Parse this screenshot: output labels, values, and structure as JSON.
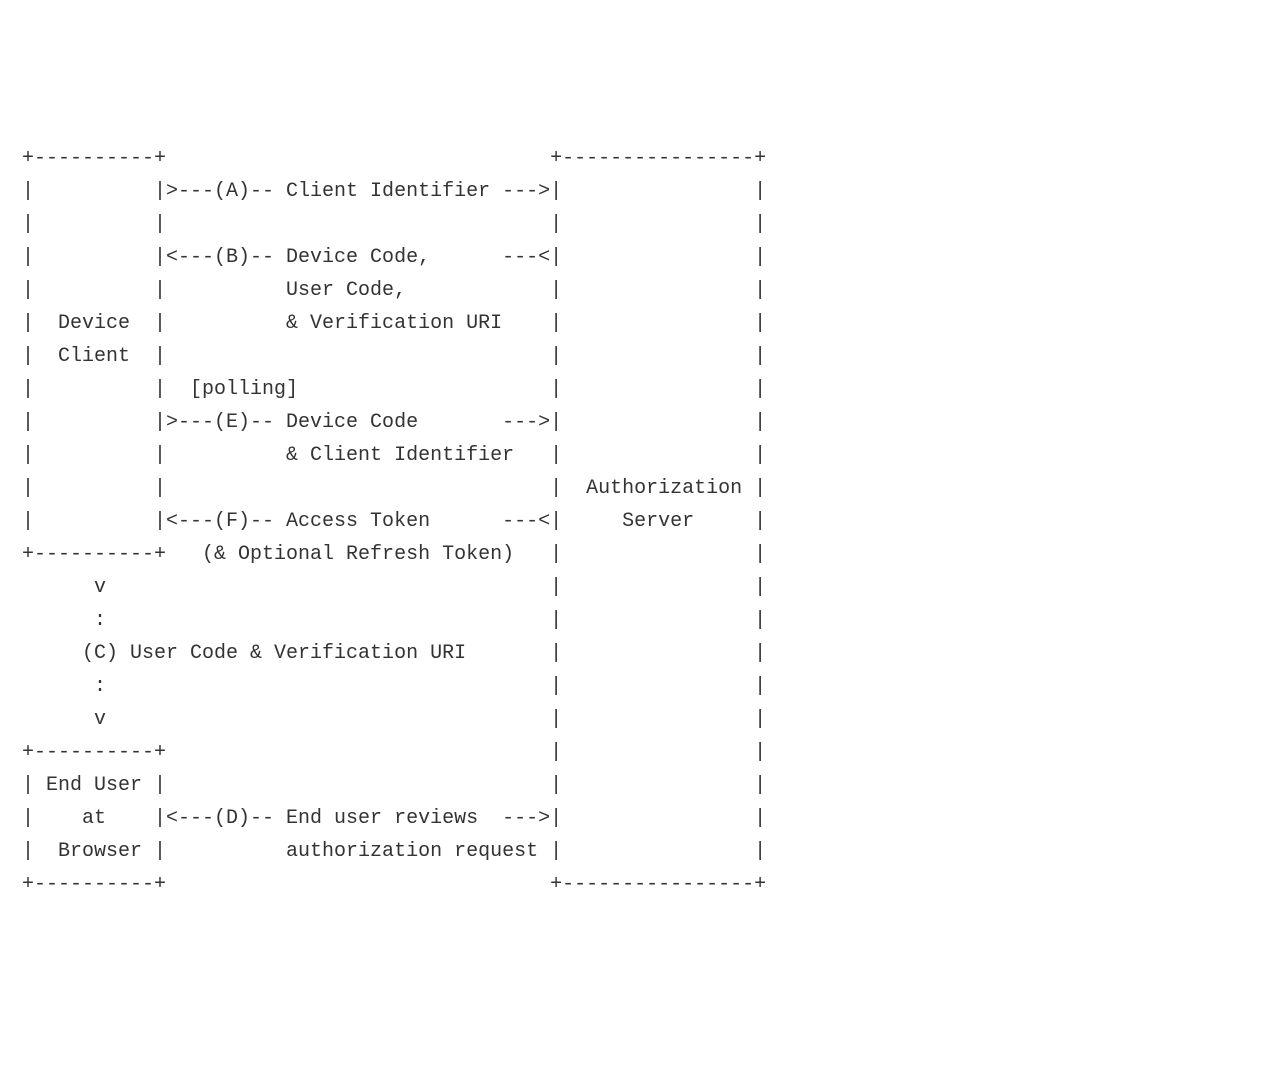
{
  "diagram": {
    "type": "flowchart",
    "font_family": "monospace",
    "font_size_pt": 15,
    "text_color": "#333333",
    "background_color": "#ffffff",
    "line_height": 1.65,
    "boxes": {
      "device_client": {
        "label_line1": "Device",
        "label_line2": "Client"
      },
      "auth_server": {
        "label_line1": "Authorization",
        "label_line2": "Server"
      },
      "end_user": {
        "label_line1": "End User",
        "label_line2": "at",
        "label_line3": "Browser"
      }
    },
    "flows": {
      "a": {
        "letter": "(A)",
        "label": "Client Identifier",
        "direction": "right"
      },
      "b": {
        "letter": "(B)",
        "label_line1": "Device Code,",
        "label_line2": "User Code,",
        "label_line3": "& Verification URI",
        "direction": "left"
      },
      "c": {
        "letter": "(C)",
        "label": "User Code & Verification URI",
        "direction": "down"
      },
      "d": {
        "letter": "(D)",
        "label_line1": "End user reviews",
        "label_line2": "authorization request",
        "direction": "bidirectional"
      },
      "e": {
        "letter": "(E)",
        "prefix": "[polling]",
        "label_line1": "Device Code",
        "label_line2": "& Client Identifier",
        "direction": "right"
      },
      "f": {
        "letter": "(F)",
        "label_line1": "Access Token",
        "label_line2": "(& Optional Refresh Token)",
        "direction": "left"
      }
    },
    "lines": {
      "l00": " +----------+                                +----------------+",
      "l01": " |          |>---(A)-- Client Identifier --->|                |",
      "l02": " |          |                                |                |",
      "l03": " |          |<---(B)-- Device Code,      ---<|                |",
      "l04": " |          |          User Code,            |                |",
      "l05": " |  Device  |          & Verification URI    |                |",
      "l06": " |  Client  |                                |                |",
      "l07": " |          |  [polling]                     |                |",
      "l08": " |          |>---(E)-- Device Code       --->|                |",
      "l09": " |          |          & Client Identifier   |                |",
      "l10": " |          |                                |  Authorization |",
      "l11": " |          |<---(F)-- Access Token      ---<|     Server     |",
      "l12": " +----------+   (& Optional Refresh Token)   |                |",
      "l13": "       v                                     |                |",
      "l14": "       :                                     |                |",
      "l15": "      (C) User Code & Verification URI       |                |",
      "l16": "       :                                     |                |",
      "l17": "       v                                     |                |",
      "l18": " +----------+                                |                |",
      "l19": " | End User |                                |                |",
      "l20": " |    at    |<---(D)-- End user reviews  --->|                |",
      "l21": " |  Browser |          authorization request |                |",
      "l22": " +----------+                                +----------------+"
    }
  }
}
